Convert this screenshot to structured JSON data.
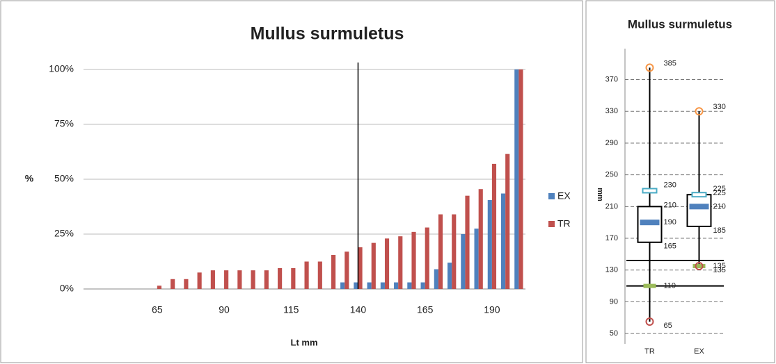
{
  "chart_data": [
    {
      "type": "bar",
      "title": "Mullus surmuletus",
      "ylabel": "%",
      "xlabel": "Lt mm",
      "x": [
        40,
        45,
        50,
        55,
        60,
        65,
        70,
        75,
        80,
        85,
        90,
        95,
        100,
        105,
        110,
        115,
        120,
        125,
        130,
        135,
        140,
        145,
        150,
        155,
        160,
        165,
        170,
        175,
        180,
        185,
        190,
        195,
        200
      ],
      "series": [
        {
          "name": "EX",
          "color": "#4f81bd",
          "values": [
            0,
            0,
            0,
            0,
            0,
            0,
            0,
            0,
            0,
            0,
            0,
            0,
            0,
            0,
            0,
            0,
            0,
            0,
            0,
            3,
            3,
            3,
            3,
            3,
            3,
            3,
            9,
            12,
            25,
            27.5,
            40.5,
            43.5,
            100
          ]
        },
        {
          "name": "TR",
          "color": "#c0504d",
          "values": [
            0,
            0,
            0,
            0,
            0,
            1.5,
            4.5,
            4.5,
            7.5,
            8.5,
            8.5,
            8.5,
            8.5,
            8.5,
            9.5,
            9.5,
            12.5,
            12.5,
            15.5,
            17,
            19,
            21,
            23,
            24,
            26,
            28,
            34,
            34,
            42.5,
            45.5,
            57,
            61.5,
            100
          ]
        }
      ],
      "xlim": [
        37.5,
        202.5
      ],
      "xticks": [
        65,
        90,
        115,
        140,
        165,
        190
      ],
      "ylim": [
        0,
        100
      ],
      "yticks": [
        {
          "value": 0,
          "label": "0%"
        },
        {
          "value": 25,
          "label": "25%"
        },
        {
          "value": 50,
          "label": "50%"
        },
        {
          "value": 75,
          "label": "75%"
        },
        {
          "value": 100,
          "label": "100%"
        }
      ],
      "grid": true,
      "legend": "right",
      "vline": 140
    },
    {
      "type": "box",
      "title": "Mullus surmuletus",
      "ylabel": "mm",
      "categories": [
        "TR",
        "EX"
      ],
      "boxes": [
        {
          "min": 65,
          "q1": 165,
          "median": 190,
          "q3": 210,
          "max": 385,
          "mean": 230,
          "low_marker": 110
        },
        {
          "min": 135,
          "q1": 185,
          "median": 210,
          "q3": 225,
          "max": 330,
          "mean": 225,
          "low_marker": 135
        }
      ],
      "colors": {
        "max": "#f79646",
        "min": "#c0504d",
        "mean": "#4bacc6",
        "median": "#4f81bd",
        "low_marker": "#9bbb59"
      },
      "ylim": [
        37,
        395
      ],
      "yticks": [
        50,
        90,
        130,
        170,
        210,
        250,
        290,
        330,
        370
      ],
      "grid": true,
      "hlines": [
        142,
        110
      ]
    }
  ]
}
